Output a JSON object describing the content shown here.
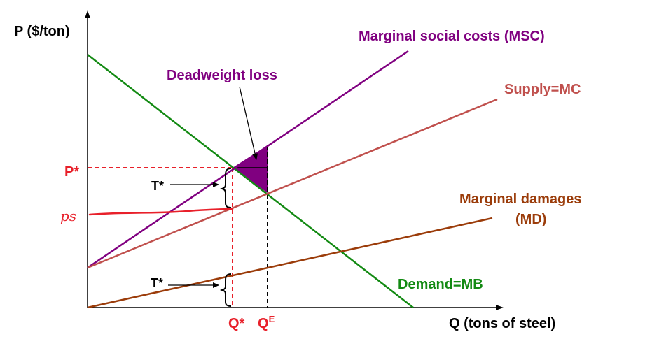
{
  "title": "",
  "axes": {
    "y_label": "P ($/ton)",
    "x_label": "Q (tons of steel)"
  },
  "curves": {
    "msc": {
      "label": "Marginal social costs (MSC)",
      "color": "#800080"
    },
    "supply": {
      "label": "Supply=MC",
      "color": "#c0504d"
    },
    "md": {
      "label_line1": "Marginal damages",
      "label_line2": "(MD)",
      "color": "#9b3c0a"
    },
    "demand": {
      "label": "Demand=MB",
      "color": "#138a13"
    }
  },
  "annotations": {
    "deadweight_loss": "Deadweight loss",
    "p_star": "P*",
    "ps": "ps",
    "t_star_upper": "T*",
    "t_star_lower": "T*",
    "q_star": "Q*",
    "q_e_main": "Q",
    "q_e_sup": "E"
  },
  "colors": {
    "dwl_fill": "#800080",
    "highlight_red": "#e8202a",
    "axis": "#000000"
  }
}
